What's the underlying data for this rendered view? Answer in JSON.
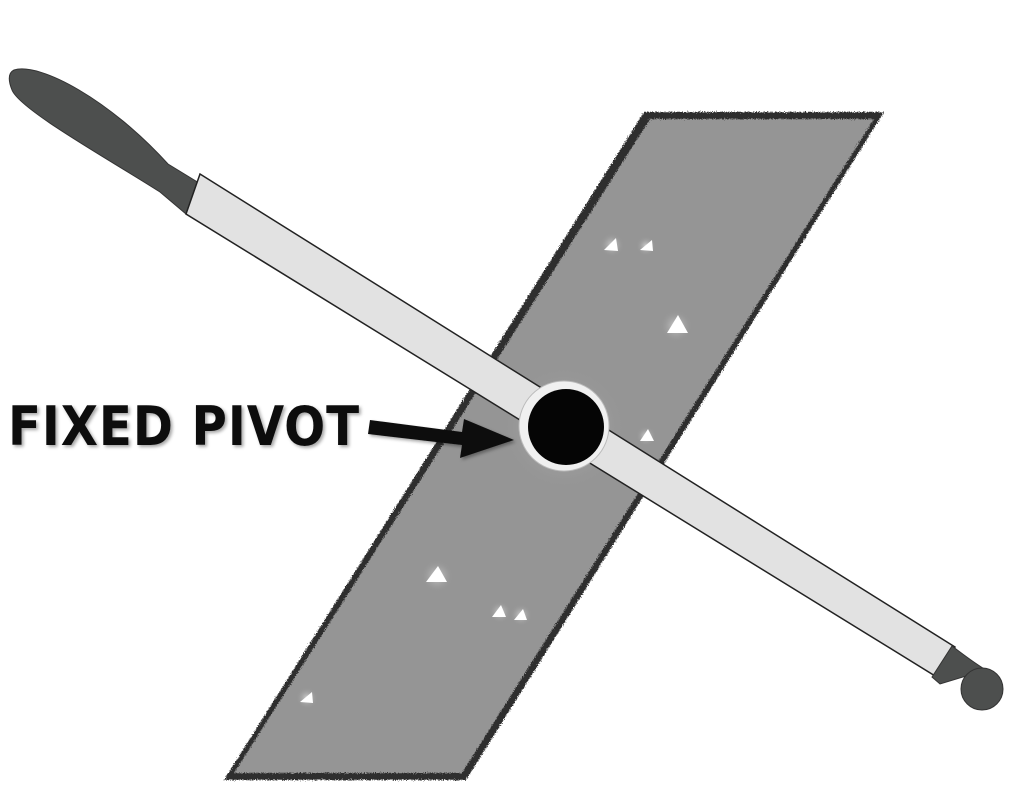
{
  "diagram": {
    "label": "FIXED PIVOT"
  },
  "colors": {
    "surface": "#959595",
    "surface_speckle": "#2e2e2e",
    "bar_fill": "#e2e2e2",
    "bar_outline": "#222222",
    "handle": "#4d4f4e",
    "pivot": "#050505",
    "pivot_ring": "#f0f0f0",
    "label": "#111111",
    "background": "#ffffff"
  }
}
